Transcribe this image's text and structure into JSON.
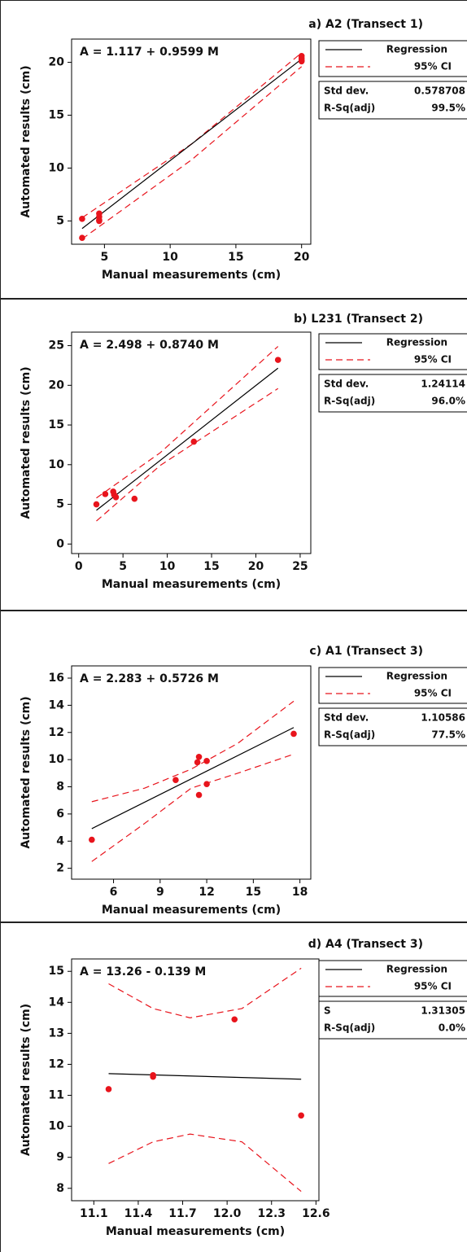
{
  "chart_data": [
    {
      "type": "scatter",
      "title": "a) A2 (Transect 1)",
      "equation": "A =  1.117 + 0.9599 M",
      "x_label": "Manual measurements (cm)",
      "y_label": "Automated results (cm)",
      "xlim": [
        2.5,
        20.7
      ],
      "ylim": [
        2.8,
        22.2
      ],
      "xticks": [
        5,
        10,
        15,
        20
      ],
      "yticks": [
        5,
        10,
        15,
        20
      ],
      "points": {
        "color": "#e8141c",
        "x": [
          3.3,
          3.3,
          4.6,
          4.6,
          4.6,
          4.6,
          20,
          20,
          20,
          20
        ],
        "y": [
          5.2,
          3.4,
          5.7,
          5.4,
          5.1,
          5.0,
          20.6,
          20.4,
          20.2,
          20.1
        ]
      },
      "fit": {
        "name": "Regression",
        "color": "#000000",
        "x": [
          3.3,
          20
        ],
        "y": [
          4.28,
          20.31
        ]
      },
      "ci": {
        "name": "95% CI",
        "color": "#e8141c",
        "x": [
          3.3,
          11.65,
          20
        ],
        "upper": [
          5.3,
          12.3,
          20.9
        ],
        "lower": [
          3.3,
          10.8,
          19.6
        ]
      },
      "stats": [
        [
          "Std dev.",
          "0.578708"
        ],
        [
          "R-Sq(adj)",
          "99.5%"
        ]
      ]
    },
    {
      "type": "scatter",
      "title": "b) L231 (Transect 2)",
      "equation": "A =  2.498 + 0.8740 M",
      "x_label": "Manual measurements (cm)",
      "y_label": "Automated results (cm)",
      "xlim": [
        -0.8,
        26.2
      ],
      "ylim": [
        -1.2,
        26.7
      ],
      "xticks": [
        0,
        5,
        10,
        15,
        20,
        25
      ],
      "yticks": [
        0,
        5,
        10,
        15,
        20,
        25
      ],
      "points": {
        "color": "#e8141c",
        "x": [
          2,
          3,
          3.9,
          4,
          4.2,
          6.3,
          13,
          22.5
        ],
        "y": [
          5.0,
          6.3,
          6.6,
          6.2,
          5.9,
          5.7,
          12.9,
          23.2
        ]
      },
      "fit": {
        "name": "Regression",
        "color": "#000000",
        "x": [
          2,
          22.5
        ],
        "y": [
          4.25,
          22.16
        ]
      },
      "ci": {
        "name": "95% CI",
        "color": "#e8141c",
        "x": [
          2,
          9.2,
          22.5
        ],
        "upper": [
          5.8,
          11.5,
          24.9
        ],
        "lower": [
          2.9,
          9.9,
          19.6
        ]
      },
      "stats": [
        [
          "Std dev.",
          "1.24114"
        ],
        [
          "R-Sq(adj)",
          "96.0%"
        ]
      ]
    },
    {
      "type": "scatter",
      "title": "c) A1 (Transect 3)",
      "equation": "A =  2.283 + 0.5726 M",
      "x_label": "Manual measurements (cm)",
      "y_label": "Automated results (cm)",
      "xlim": [
        3.3,
        18.7
      ],
      "ylim": [
        1.2,
        16.9
      ],
      "xticks": [
        6,
        9,
        12,
        15,
        18
      ],
      "yticks": [
        2,
        4,
        6,
        8,
        10,
        12,
        14,
        16
      ],
      "points": {
        "color": "#e8141c",
        "x": [
          4.6,
          10,
          11.4,
          11.5,
          11.5,
          12,
          12,
          17.6
        ],
        "y": [
          4.1,
          8.5,
          9.8,
          10.2,
          7.4,
          9.9,
          8.2,
          11.9
        ]
      },
      "fit": {
        "name": "Regression",
        "color": "#000000",
        "x": [
          4.6,
          17.6
        ],
        "y": [
          4.92,
          12.36
        ]
      },
      "ci": {
        "name": "95% CI",
        "color": "#e8141c",
        "x": [
          4.6,
          8,
          11,
          14,
          17.6
        ],
        "upper": [
          6.9,
          7.9,
          9.3,
          11.2,
          14.3
        ],
        "lower": [
          2.5,
          5.3,
          7.9,
          9.0,
          10.4
        ]
      },
      "stats": [
        [
          "Std dev.",
          "1.10586"
        ],
        [
          "R-Sq(adj)",
          "77.5%"
        ]
      ]
    },
    {
      "type": "scatter",
      "title": "d) A4 (Transect 3)",
      "equation": "A = 13.26 - 0.139 M",
      "x_label": "Manual measurements (cm)",
      "y_label": "Automated results (cm)",
      "xlim": [
        10.95,
        12.62
      ],
      "ylim": [
        7.6,
        15.4
      ],
      "xticks": [
        11.1,
        11.4,
        11.7,
        {
          "value": 12,
          "label": "12.0"
        },
        12.3,
        12.6
      ],
      "yticks": [
        8,
        9,
        10,
        11,
        12,
        13,
        14,
        15
      ],
      "points": {
        "color": "#e8141c",
        "x": [
          11.2,
          11.5,
          11.5,
          12.05,
          12.5
        ],
        "y": [
          11.2,
          11.6,
          11.65,
          13.45,
          10.35
        ]
      },
      "fit": {
        "name": "Regression",
        "color": "#000000",
        "x": [
          11.2,
          12.5
        ],
        "y": [
          11.7,
          11.52
        ]
      },
      "ci": {
        "name": "95% CI",
        "color": "#e8141c",
        "x": [
          11.2,
          11.5,
          11.75,
          12.1,
          12.5
        ],
        "upper": [
          14.6,
          13.8,
          13.5,
          13.8,
          15.1
        ],
        "lower": [
          8.8,
          9.5,
          9.75,
          9.5,
          7.9
        ]
      },
      "stats": [
        [
          "S",
          "1.31305"
        ],
        [
          "R-Sq(adj)",
          "0.0%"
        ]
      ]
    }
  ]
}
